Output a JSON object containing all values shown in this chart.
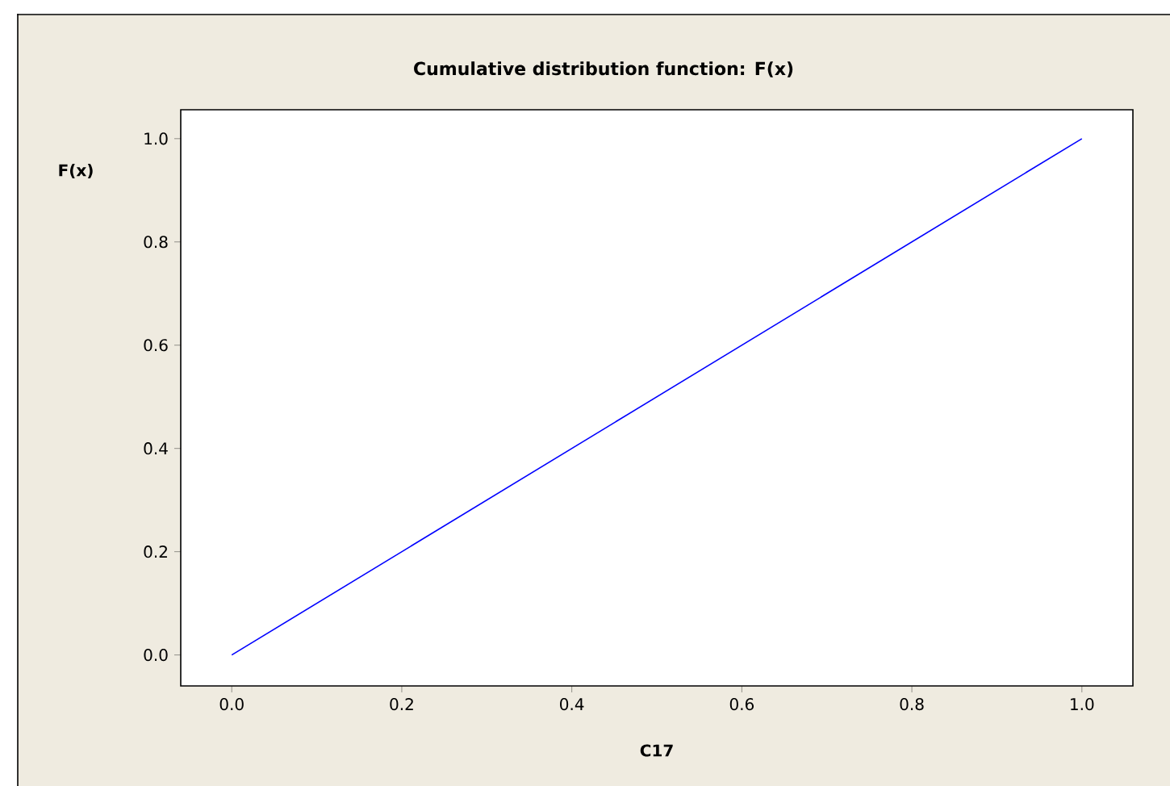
{
  "chart_data": {
    "type": "line",
    "title": "Cumulative distribution function: F(x)",
    "xlabel": "C17",
    "ylabel": "F(x)",
    "x": [
      0,
      1
    ],
    "series": [
      {
        "color": "#0000ff",
        "values": [
          0,
          1
        ]
      }
    ],
    "xlim": [
      -0.06,
      1.06
    ],
    "ylim": [
      -0.06,
      1.056
    ],
    "xticks": [
      {
        "value": 0,
        "label": "0.0"
      },
      {
        "value": 0.2,
        "label": "0.2"
      },
      {
        "value": 0.4,
        "label": "0.4"
      },
      {
        "value": 0.6,
        "label": "0.6"
      },
      {
        "value": 0.8,
        "label": "0.8"
      },
      {
        "value": 1,
        "label": "1.0"
      }
    ],
    "yticks": [
      {
        "value": 0,
        "label": "0.0"
      },
      {
        "value": 0.2,
        "label": "0.2"
      },
      {
        "value": 0.4,
        "label": "0.4"
      },
      {
        "value": 0.6,
        "label": "0.6"
      },
      {
        "value": 0.8,
        "label": "0.8"
      },
      {
        "value": 1,
        "label": "1.0"
      }
    ],
    "grid": false
  }
}
